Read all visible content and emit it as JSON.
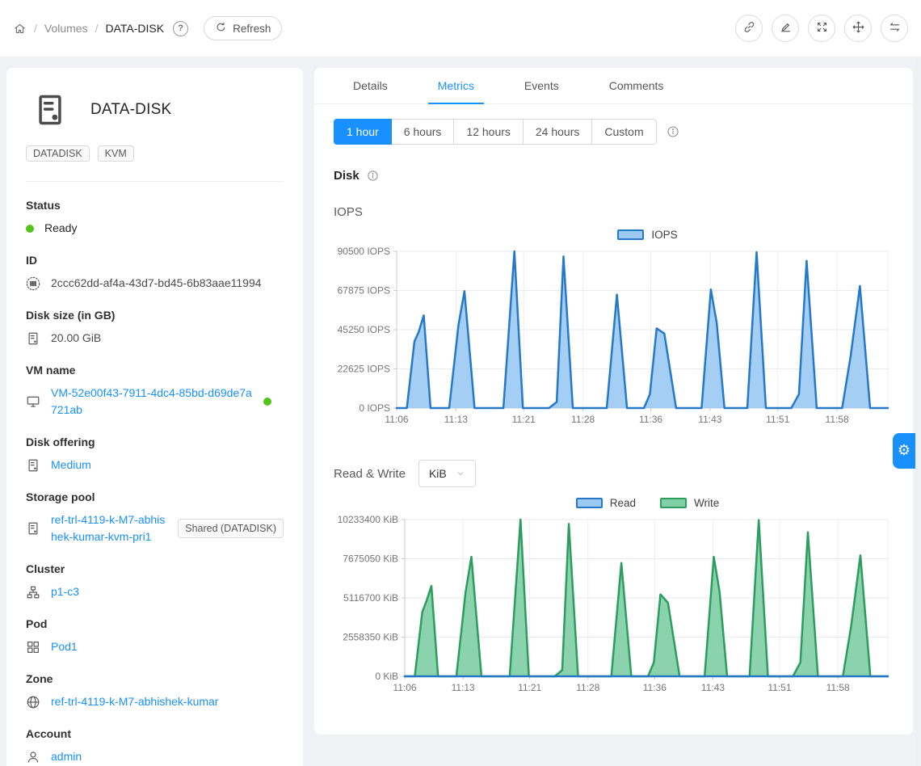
{
  "header": {
    "breadcrumb": [
      "Volumes",
      "DATA-DISK"
    ],
    "refresh_label": "Refresh",
    "actions": [
      {
        "icon": "link"
      },
      {
        "icon": "edit"
      },
      {
        "icon": "resize"
      },
      {
        "icon": "move"
      },
      {
        "icon": "swap"
      }
    ]
  },
  "sidebar": {
    "title": "DATA-DISK",
    "tags": [
      "DATADISK",
      "KVM"
    ],
    "fields": [
      {
        "label": "Status",
        "icon": "status",
        "value": "Ready",
        "kind": "status"
      },
      {
        "label": "ID",
        "icon": "barcode",
        "value": "2ccc62dd-af4a-43d7-bd45-6b83aae11994",
        "kind": "text"
      },
      {
        "label": "Disk size (in GB)",
        "icon": "disk",
        "value": "20.00 GiB",
        "kind": "text"
      },
      {
        "label": "VM name",
        "icon": "monitor",
        "value": "VM-52e00f43-7911-4dc4-85bd-d69de7a721ab",
        "kind": "link",
        "dot": "#52c41a"
      },
      {
        "label": "Disk offering",
        "icon": "disk",
        "value": "Medium",
        "kind": "link"
      },
      {
        "label": "Storage pool",
        "icon": "disk",
        "value": "ref-trl-4119-k-M7-abhishek-kumar-kvm-pri1",
        "kind": "link",
        "tag": "Shared (DATADISK)"
      },
      {
        "label": "Cluster",
        "icon": "cluster",
        "value": "p1-c3",
        "kind": "link"
      },
      {
        "label": "Pod",
        "icon": "pod",
        "value": "Pod1",
        "kind": "link"
      },
      {
        "label": "Zone",
        "icon": "globe",
        "value": "ref-trl-4119-k-M7-abhishek-kumar",
        "kind": "link"
      },
      {
        "label": "Account",
        "icon": "user",
        "value": "admin",
        "kind": "link"
      }
    ]
  },
  "main": {
    "tabs": [
      {
        "label": "Details"
      },
      {
        "label": "Metrics",
        "active": true
      },
      {
        "label": "Events"
      },
      {
        "label": "Comments"
      }
    ],
    "time_ranges": [
      {
        "label": "1 hour",
        "active": true
      },
      {
        "label": "6 hours"
      },
      {
        "label": "12 hours"
      },
      {
        "label": "24 hours"
      },
      {
        "label": "Custom"
      }
    ],
    "section_title": "Disk",
    "unit_select": {
      "value": "KiB"
    }
  },
  "colors": {
    "accent": "#1890ff",
    "link": "#1890ff",
    "status_ready": "#52c41a",
    "iops_line": "#2579c8",
    "iops_fill": "#9ccaf2",
    "write_line": "#2c9d5f",
    "write_fill": "#80cfa5"
  },
  "icons": {
    "home-icon": "⌂",
    "help-icon": "?",
    "refresh-icon": "↻",
    "link-icon": "🔗",
    "edit-icon": "✎",
    "resize-icon": "⤢",
    "move-icon": "✥",
    "swap-icon": "⇆",
    "disk-icon": "▤",
    "barcode-icon": "▮▮▮",
    "monitor-icon": "🖵",
    "cluster-icon": "⏧",
    "pod-icon": "⊞",
    "globe-icon": "🌐",
    "user-icon": "👤",
    "chevron-down-icon": "∨",
    "info-icon": "ⓘ",
    "gear-icon": "⚙"
  },
  "chart_data": [
    {
      "type": "area",
      "title": "IOPS",
      "x_unit": "minutes since 11:06",
      "x_range": [
        0,
        58
      ],
      "x_ticks": [
        {
          "t": 0,
          "label": "11:06"
        },
        {
          "t": 7,
          "label": "11:13"
        },
        {
          "t": 15,
          "label": "11:21"
        },
        {
          "t": 22,
          "label": "11:28"
        },
        {
          "t": 30,
          "label": "11:36"
        },
        {
          "t": 37,
          "label": "11:43"
        },
        {
          "t": 45,
          "label": "11:51"
        },
        {
          "t": 52,
          "label": "11:58"
        }
      ],
      "y_max": 90500,
      "y_ticks": [
        {
          "v": 0,
          "label": "0 IOPS"
        },
        {
          "v": 22625,
          "label": "22625 IOPS"
        },
        {
          "v": 45250,
          "label": "45250 IOPS"
        },
        {
          "v": 67875,
          "label": "67875 IOPS"
        },
        {
          "v": 90500,
          "label": "90500 IOPS"
        }
      ],
      "grid": true,
      "legend_position": "top",
      "series": [
        {
          "name": "IOPS",
          "line_color": "#2579c8",
          "fill_color": "#9ccaf2",
          "points": [
            [
              0,
              0
            ],
            [
              1.2,
              0
            ],
            [
              2.1,
              38500
            ],
            [
              2.6,
              44000
            ],
            [
              3.2,
              53500
            ],
            [
              4.0,
              0
            ],
            [
              6.2,
              0
            ],
            [
              7.3,
              48000
            ],
            [
              8.0,
              67500
            ],
            [
              9.2,
              0
            ],
            [
              12.6,
              0
            ],
            [
              13.9,
              90500
            ],
            [
              14.9,
              0
            ],
            [
              18.0,
              0
            ],
            [
              18.9,
              3500
            ],
            [
              19.7,
              87500
            ],
            [
              20.8,
              0
            ],
            [
              24.8,
              0
            ],
            [
              26.0,
              65500
            ],
            [
              27.2,
              0
            ],
            [
              29.2,
              0
            ],
            [
              29.9,
              8000
            ],
            [
              30.7,
              46000
            ],
            [
              31.6,
              43000
            ],
            [
              33.0,
              0
            ],
            [
              36.0,
              0
            ],
            [
              37.1,
              68500
            ],
            [
              37.8,
              49000
            ],
            [
              38.7,
              0
            ],
            [
              41.4,
              0
            ],
            [
              42.5,
              90000
            ],
            [
              43.6,
              0
            ],
            [
              46.6,
              0
            ],
            [
              47.5,
              8000
            ],
            [
              48.4,
              85000
            ],
            [
              49.6,
              0
            ],
            [
              52.6,
              0
            ],
            [
              53.6,
              30000
            ],
            [
              54.7,
              70500
            ],
            [
              55.9,
              0
            ],
            [
              58,
              0
            ]
          ]
        }
      ]
    },
    {
      "type": "area",
      "title": "Read & Write",
      "unit": "KiB",
      "x_unit": "minutes since 11:06",
      "x_range": [
        0,
        58
      ],
      "x_ticks": [
        {
          "t": 0,
          "label": "11:06"
        },
        {
          "t": 7,
          "label": "11:13"
        },
        {
          "t": 15,
          "label": "11:21"
        },
        {
          "t": 22,
          "label": "11:28"
        },
        {
          "t": 30,
          "label": "11:36"
        },
        {
          "t": 37,
          "label": "11:43"
        },
        {
          "t": 45,
          "label": "11:51"
        },
        {
          "t": 52,
          "label": "11:58"
        }
      ],
      "y_max": 10233400,
      "y_ticks": [
        {
          "v": 0,
          "label": "0 KiB"
        },
        {
          "v": 2558350,
          "label": "2558350 KiB"
        },
        {
          "v": 5116700,
          "label": "5116700 KiB"
        },
        {
          "v": 7675050,
          "label": "7675050 KiB"
        },
        {
          "v": 10233400,
          "label": "10233400 KiB"
        }
      ],
      "grid": true,
      "legend_position": "top",
      "series": [
        {
          "name": "Read",
          "line_color": "#2579c8",
          "fill_color": "#9ccaf2",
          "points": [
            [
              0,
              0
            ],
            [
              58,
              0
            ]
          ]
        },
        {
          "name": "Write",
          "line_color": "#2c9d5f",
          "fill_color": "#80cfa5",
          "points": [
            [
              0,
              0
            ],
            [
              1.2,
              0
            ],
            [
              2.1,
              4200000
            ],
            [
              2.6,
              4900000
            ],
            [
              3.2,
              5900000
            ],
            [
              4.0,
              0
            ],
            [
              6.2,
              0
            ],
            [
              7.3,
              5500000
            ],
            [
              8.0,
              7800000
            ],
            [
              9.2,
              0
            ],
            [
              12.6,
              0
            ],
            [
              13.9,
              10233400
            ],
            [
              14.9,
              0
            ],
            [
              18.0,
              0
            ],
            [
              18.9,
              400000
            ],
            [
              19.7,
              9950000
            ],
            [
              20.8,
              0
            ],
            [
              24.8,
              0
            ],
            [
              26.0,
              7400000
            ],
            [
              27.2,
              0
            ],
            [
              29.2,
              0
            ],
            [
              29.9,
              900000
            ],
            [
              30.7,
              5350000
            ],
            [
              31.6,
              4800000
            ],
            [
              33.0,
              0
            ],
            [
              36.0,
              0
            ],
            [
              37.1,
              7800000
            ],
            [
              37.8,
              5500000
            ],
            [
              38.7,
              0
            ],
            [
              41.4,
              0
            ],
            [
              42.5,
              10200000
            ],
            [
              43.6,
              0
            ],
            [
              46.6,
              0
            ],
            [
              47.5,
              900000
            ],
            [
              48.4,
              9400000
            ],
            [
              49.6,
              0
            ],
            [
              52.6,
              0
            ],
            [
              53.6,
              3300000
            ],
            [
              54.7,
              7900000
            ],
            [
              55.9,
              0
            ],
            [
              58,
              0
            ]
          ]
        }
      ]
    }
  ]
}
